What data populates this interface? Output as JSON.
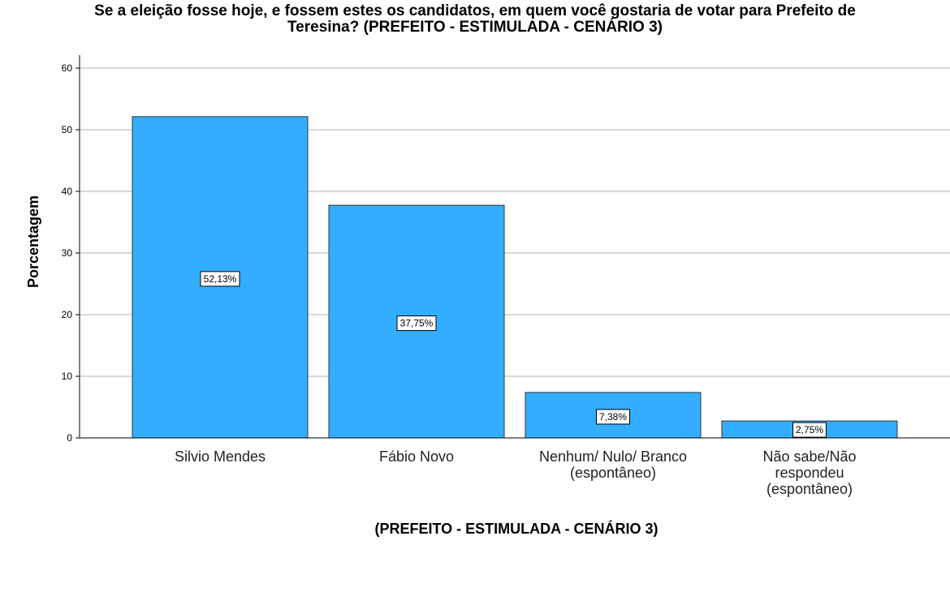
{
  "chart_data": {
    "type": "bar",
    "title_lines": [
      "Se a eleição fosse hoje, e fossem estes os candidatos, em quem você gostaria de votar  para Prefeito de",
      "Teresina?  (PREFEITO - ESTIMULADA - CENÁRIO 3)"
    ],
    "xlabel": "(PREFEITO - ESTIMULADA - CENÁRIO 3)",
    "ylabel": "Porcentagem",
    "ylim": [
      0,
      60
    ],
    "yticks": [
      "0",
      "10",
      "20",
      "30",
      "40",
      "50",
      "60"
    ],
    "grid": true,
    "bar_color": "#33adff",
    "categories": [
      [
        "Silvio Mendes"
      ],
      [
        "Fábio Novo"
      ],
      [
        "Nenhum/ Nulo/ Branco",
        "(espontâneo)"
      ],
      [
        "Não sabe/Não",
        "respondeu",
        "(espontâneo)"
      ]
    ],
    "values": [
      52.13,
      37.75,
      7.38,
      2.75
    ],
    "data_labels": [
      "52,13%",
      "37,75%",
      "7,38%",
      "2,75%"
    ]
  }
}
